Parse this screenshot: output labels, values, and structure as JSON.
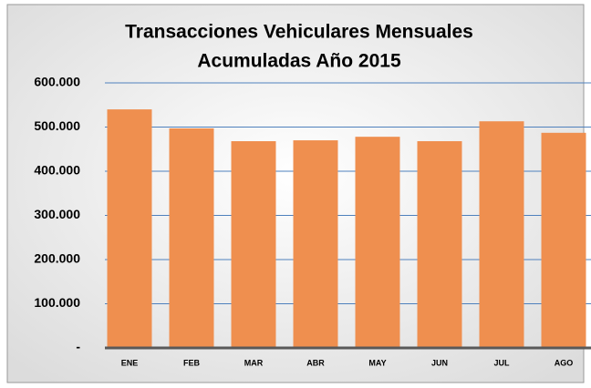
{
  "chart_data": {
    "type": "bar",
    "title": [
      "Transacciones Vehiculares Mensuales",
      "Acumuladas Año 2015"
    ],
    "categories": [
      "ENE",
      "FEB",
      "MAR",
      "ABR",
      "MAY",
      "JUN",
      "JUL",
      "AGO"
    ],
    "values": [
      540000,
      497000,
      468000,
      470000,
      478000,
      468000,
      513000,
      487000
    ],
    "color": "#ef8f4f",
    "ylim": [
      0,
      600000
    ],
    "yticks": [
      {
        "value": 0,
        "label": "-"
      },
      {
        "value": 100000,
        "label": "100.000"
      },
      {
        "value": 200000,
        "label": "200.000"
      },
      {
        "value": 300000,
        "label": "300.000"
      },
      {
        "value": 400000,
        "label": "400.000"
      },
      {
        "value": 500000,
        "label": "500.000"
      },
      {
        "value": 600000,
        "label": "600.000"
      }
    ],
    "grid": true
  }
}
